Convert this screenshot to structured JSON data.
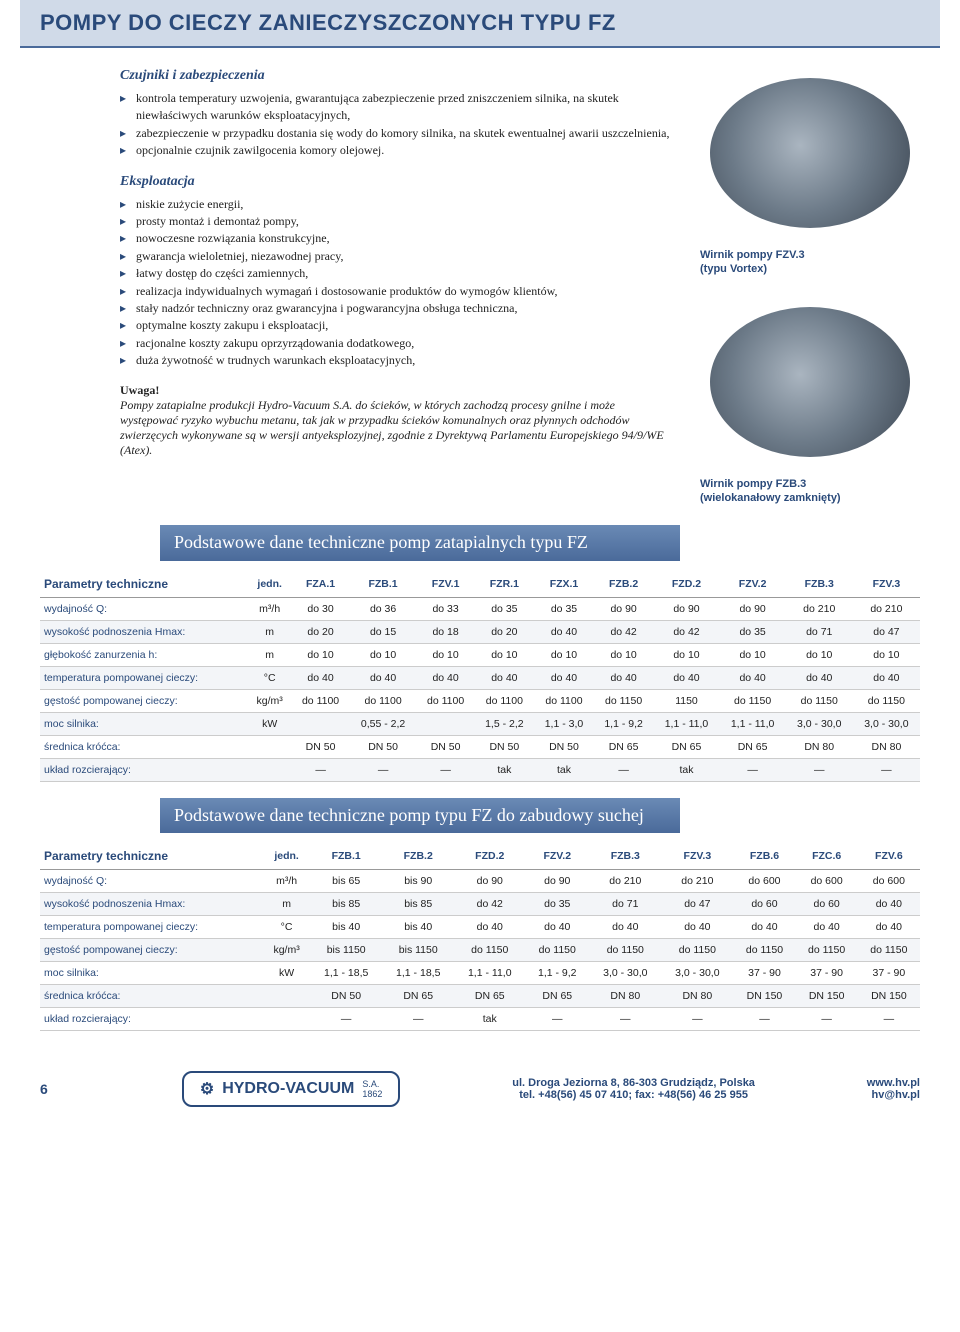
{
  "header": {
    "title": "POMPY DO CIECZY ZANIECZYSZCZONYCH TYPU FZ"
  },
  "sections": {
    "czujniki": {
      "heading": "Czujniki i zabezpieczenia",
      "items": [
        "kontrola temperatury uzwojenia, gwarantująca zabezpieczenie przed zniszczeniem silnika, na skutek niewłaściwych warunków eksploatacyjnych,",
        "zabezpieczenie w przypadku dostania się wody do komory silnika, na skutek ewentualnej awarii uszczelnienia,",
        "opcjonalnie czujnik zawilgocenia komory olejowej."
      ]
    },
    "eksploatacja": {
      "heading": "Eksploatacja",
      "items": [
        "niskie zużycie energii,",
        "prosty montaż i demontaż pompy,",
        "nowoczesne rozwiązania konstrukcyjne,",
        "gwarancja wieloletniej, niezawodnej pracy,",
        "łatwy dostęp do części zamiennych,",
        "realizacja indywidualnych wymagań i dostosowanie produktów do wymogów klientów,",
        "stały nadzór techniczny oraz gwarancyjna i pogwarancyjna obsługa techniczna,",
        "optymalne koszty zakupu i eksploatacji,",
        "racjonalne koszty zakupu oprzyrządowania dodatkowego,",
        "duża żywotność w trudnych warunkach eksploatacyjnych,"
      ]
    },
    "uwaga": {
      "label": "Uwaga!",
      "body": "Pompy zatapialne produkcji Hydro-Vacuum S.A. do ścieków, w których zachodzą procesy gnilne i może występować ryzyko wybuchu metanu, tak jak w przypadku ścieków komunalnych oraz płynnych odchodów zwierzęcych wykonywane są w wersji antyeksplozyjnej, zgodnie z Dyrektywą Parlamentu Europejskiego 94/9/WE (Atex)."
    }
  },
  "image_captions": {
    "cap1_l1": "Wirnik pompy FZV.3",
    "cap1_l2": "(typu Vortex)",
    "cap2_l1": "Wirnik pompy FZB.3",
    "cap2_l2": "(wielokanałowy zamknięty)"
  },
  "table1": {
    "title": "Podstawowe dane techniczne pomp zatapialnych typu FZ",
    "header_label": "Parametry techniczne",
    "columns": [
      "jedn.",
      "FZA.1",
      "FZB.1",
      "FZV.1",
      "FZR.1",
      "FZX.1",
      "FZB.2",
      "FZD.2",
      "FZV.2",
      "FZB.3",
      "FZV.3"
    ],
    "rows": [
      {
        "label": "wydajność Q:",
        "cells": [
          "m³/h",
          "do 30",
          "do 36",
          "do 33",
          "do 35",
          "do 35",
          "do 90",
          "do 90",
          "do 90",
          "do 210",
          "do 210"
        ]
      },
      {
        "label": "wysokość podnoszenia Hmax:",
        "cells": [
          "m",
          "do 20",
          "do 15",
          "do 18",
          "do 20",
          "do 40",
          "do 42",
          "do 42",
          "do 35",
          "do 71",
          "do 47"
        ]
      },
      {
        "label": "głębokość zanurzenia h:",
        "cells": [
          "m",
          "do 10",
          "do 10",
          "do 10",
          "do 10",
          "do 10",
          "do 10",
          "do 10",
          "do 10",
          "do 10",
          "do 10"
        ]
      },
      {
        "label": "temperatura pompowanej cieczy:",
        "cells": [
          "°C",
          "do 40",
          "do 40",
          "do 40",
          "do 40",
          "do 40",
          "do 40",
          "do 40",
          "do 40",
          "do 40",
          "do 40"
        ]
      },
      {
        "label": "gęstość pompowanej cieczy:",
        "cells": [
          "kg/m³",
          "do 1100",
          "do 1100",
          "do 1100",
          "do 1100",
          "do 1100",
          "do 1150",
          "1150",
          "do 1150",
          "do 1150",
          "do 1150"
        ]
      },
      {
        "label": "moc silnika:",
        "cells": [
          "kW",
          "",
          "0,55 - 2,2",
          "",
          "1,5 - 2,2",
          "1,1 - 3,0",
          "1,1 - 9,2",
          "1,1 - 11,0",
          "1,1 - 11,0",
          "3,0 - 30,0",
          "3,0 - 30,0"
        ]
      },
      {
        "label": "średnica króćca:",
        "cells": [
          "",
          "DN 50",
          "DN 50",
          "DN 50",
          "DN 50",
          "DN 50",
          "DN 65",
          "DN 65",
          "DN 65",
          "DN 80",
          "DN 80"
        ]
      },
      {
        "label": "układ rozcierający:",
        "cells": [
          "",
          "—",
          "—",
          "—",
          "tak",
          "tak",
          "—",
          "tak",
          "—",
          "—",
          "—"
        ]
      }
    ]
  },
  "table2": {
    "title": "Podstawowe dane techniczne pomp typu FZ do zabudowy suchej",
    "header_label": "Parametry techniczne",
    "columns": [
      "jedn.",
      "FZB.1",
      "FZB.2",
      "FZD.2",
      "FZV.2",
      "FZB.3",
      "FZV.3",
      "FZB.6",
      "FZC.6",
      "FZV.6"
    ],
    "rows": [
      {
        "label": "wydajność Q:",
        "cells": [
          "m³/h",
          "bis 65",
          "bis 90",
          "do 90",
          "do 90",
          "do 210",
          "do 210",
          "do 600",
          "do 600",
          "do 600"
        ]
      },
      {
        "label": "wysokość podnoszenia Hmax:",
        "cells": [
          "m",
          "bis 85",
          "bis 85",
          "do 42",
          "do 35",
          "do 71",
          "do 47",
          "do 60",
          "do 60",
          "do 40"
        ]
      },
      {
        "label": "temperatura pompowanej cieczy:",
        "cells": [
          "°C",
          "bis 40",
          "bis 40",
          "do 40",
          "do 40",
          "do 40",
          "do 40",
          "do 40",
          "do 40",
          "do 40"
        ]
      },
      {
        "label": "gęstość pompowanej cieczy:",
        "cells": [
          "kg/m³",
          "bis 1150",
          "bis 1150",
          "do 1150",
          "do 1150",
          "do 1150",
          "do 1150",
          "do 1150",
          "do 1150",
          "do 1150"
        ]
      },
      {
        "label": "moc silnika:",
        "cells": [
          "kW",
          "1,1 - 18,5",
          "1,1 - 18,5",
          "1,1 - 11,0",
          "1,1 - 9,2",
          "3,0 - 30,0",
          "3,0 - 30,0",
          "37 - 90",
          "37 - 90",
          "37 - 90"
        ]
      },
      {
        "label": "średnica króćca:",
        "cells": [
          "",
          "DN 50",
          "DN 65",
          "DN 65",
          "DN 65",
          "DN 80",
          "DN 80",
          "DN 150",
          "DN 150",
          "DN 150"
        ]
      },
      {
        "label": "układ rozcierający:",
        "cells": [
          "",
          "—",
          "—",
          "tak",
          "—",
          "—",
          "—",
          "—",
          "—",
          "—"
        ]
      }
    ]
  },
  "footer": {
    "page": "6",
    "brand": "HYDRO-VACUUM",
    "brand_suffix": "S.A.",
    "brand_year": "1862",
    "addr1": "ul. Droga Jeziorna 8, 86-303 Grudziądz, Polska",
    "addr2": "tel. +48(56) 45 07 410; fax: +48(56) 46 25 955",
    "site1": "www.hv.pl",
    "site2": "hv@hv.pl"
  },
  "colors": {
    "brand_blue": "#2a4a7a",
    "header_bg": "#d0dae8",
    "section_bg": "#4a6a9a"
  }
}
